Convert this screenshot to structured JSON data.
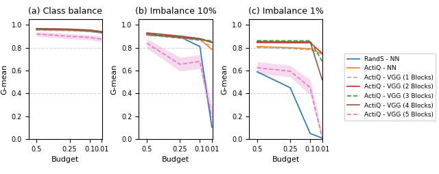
{
  "chart_data": [
    {
      "type": "line",
      "title": "(a) Class balance",
      "xlabel": "Budget",
      "ylabel": "G-mean",
      "x": [
        0.5,
        0.25,
        0.1,
        0.01
      ],
      "xlim": [
        0.56,
        0.006
      ],
      "xticks": [
        0.5,
        0.25,
        0.1,
        0.01
      ],
      "ylim": [
        0.0,
        1.05
      ],
      "yticks": [
        {
          "value": 0,
          "label": "0.0"
        },
        0.2,
        0.4,
        0.6,
        0.8,
        {
          "value": 1,
          "label": "1.0"
        }
      ],
      "hlines": [
        0.4,
        0.8
      ],
      "legend": "center right",
      "series": [
        {
          "name": "RandS - NN",
          "color": "#1f77b4",
          "line_style": "solid",
          "values": [
            0.96,
            0.955,
            0.945,
            0.93
          ]
        },
        {
          "name": "ActiQ - NN",
          "color": "#ff7f0e",
          "line_style": "solid",
          "values": [
            0.958,
            0.952,
            0.948,
            0.935
          ]
        },
        {
          "name": "ActiQ - VGG (1 Blocks)",
          "color": "#aaaaaa",
          "line_style": "dashed",
          "values": [
            0.953,
            0.948,
            0.94,
            0.928
          ]
        },
        {
          "name": "ActiQ - VGG (2 Blocks)",
          "color": "#d62728",
          "line_style": "solid",
          "values": [
            0.968,
            0.963,
            0.955,
            0.942
          ]
        },
        {
          "name": "ActiQ - VGG (3 Blocks)",
          "color": "#2ca02c",
          "line_style": "dashed",
          "values": [
            0.965,
            0.96,
            0.952,
            0.94
          ]
        },
        {
          "name": "ActiQ - VGG (4 Blocks)",
          "color": "#8c564b",
          "line_style": "solid",
          "values": [
            0.962,
            0.957,
            0.948,
            0.935
          ]
        },
        {
          "name": "ActiQ - VGG (5 Blocks)",
          "color": "#e377c2",
          "line_style": "dashed",
          "values": [
            0.92,
            0.9,
            0.89,
            0.875
          ],
          "band_upper": [
            0.94,
            0.922,
            0.912,
            0.9
          ],
          "band_lower": [
            0.9,
            0.878,
            0.868,
            0.852
          ]
        }
      ]
    },
    {
      "type": "line",
      "title": "(b) Imbalance 10%",
      "xlabel": "Budget",
      "ylabel": "G-mean",
      "x": [
        0.5,
        0.25,
        0.1,
        0.01
      ],
      "xlim": [
        0.56,
        0.006
      ],
      "xticks": [
        0.5,
        0.25,
        0.1,
        0.01
      ],
      "ylim": [
        0.0,
        1.05
      ],
      "yticks": [
        {
          "value": 0,
          "label": "0.0"
        },
        0.2,
        0.4,
        0.6,
        0.8,
        {
          "value": 1,
          "label": "1.0"
        }
      ],
      "hlines": [
        0.4,
        0.8
      ],
      "legend": "center right",
      "series": [
        {
          "name": "RandS - NN",
          "color": "#1f77b4",
          "line_style": "solid",
          "values": [
            0.91,
            0.895,
            0.81,
            0.105
          ]
        },
        {
          "name": "ActiQ - NN",
          "color": "#ff7f0e",
          "line_style": "solid",
          "values": [
            0.915,
            0.89,
            0.875,
            0.785
          ]
        },
        {
          "name": "ActiQ - VGG (1 Blocks)",
          "color": "#aaaaaa",
          "line_style": "dashed",
          "values": [
            0.91,
            0.882,
            0.862,
            0.812
          ]
        },
        {
          "name": "ActiQ - VGG (2 Blocks)",
          "color": "#d62728",
          "line_style": "solid",
          "values": [
            0.93,
            0.902,
            0.88,
            0.845
          ]
        },
        {
          "name": "ActiQ - VGG (3 Blocks)",
          "color": "#2ca02c",
          "line_style": "dashed",
          "values": [
            0.925,
            0.895,
            0.878,
            0.858
          ]
        },
        {
          "name": "ActiQ - VGG (4 Blocks)",
          "color": "#8c564b",
          "line_style": "solid",
          "values": [
            0.918,
            0.888,
            0.872,
            0.85
          ]
        },
        {
          "name": "ActiQ - VGG (5 Blocks)",
          "color": "#e377c2",
          "line_style": "dashed",
          "values": [
            0.84,
            0.655,
            0.68,
            0.195
          ],
          "band_upper": [
            0.88,
            0.715,
            0.74,
            0.29
          ],
          "band_lower": [
            0.795,
            0.595,
            0.618,
            0.1
          ]
        }
      ]
    },
    {
      "type": "line",
      "title": "(c) Imbalance 1%",
      "xlabel": "Budget",
      "ylabel": "G-mean",
      "x": [
        0.5,
        0.25,
        0.1,
        0.01
      ],
      "xlim": [
        0.56,
        0.006
      ],
      "xticks": [
        0.5,
        0.25,
        0.1,
        0.01
      ],
      "ylim": [
        0.0,
        1.05
      ],
      "yticks": [
        {
          "value": 0,
          "label": "0.0"
        },
        0.2,
        0.4,
        0.6,
        0.8,
        {
          "value": 1,
          "label": "1.0"
        }
      ],
      "hlines": [
        0.4,
        0.8
      ],
      "legend": "center right",
      "series": [
        {
          "name": "RandS - NN",
          "color": "#1f77b4",
          "line_style": "solid",
          "values": [
            0.59,
            0.45,
            0.05,
            0.01
          ]
        },
        {
          "name": "ActiQ - NN",
          "color": "#ff7f0e",
          "line_style": "solid",
          "values": [
            0.81,
            0.8,
            0.792,
            0.745
          ]
        },
        {
          "name": "ActiQ - VGG (1 Blocks)",
          "color": "#aaaaaa",
          "line_style": "dashed",
          "values": [
            0.8,
            0.792,
            0.782,
            0.742
          ]
        },
        {
          "name": "ActiQ - VGG (2 Blocks)",
          "color": "#d62728",
          "line_style": "solid",
          "values": [
            0.845,
            0.843,
            0.843,
            0.752
          ]
        },
        {
          "name": "ActiQ - VGG (3 Blocks)",
          "color": "#2ca02c",
          "line_style": "dashed",
          "values": [
            0.862,
            0.861,
            0.861,
            0.682
          ]
        },
        {
          "name": "ActiQ - VGG (4 Blocks)",
          "color": "#8c564b",
          "line_style": "solid",
          "values": [
            0.855,
            0.852,
            0.852,
            0.52
          ]
        },
        {
          "name": "ActiQ - VGG (5 Blocks)",
          "color": "#e377c2",
          "line_style": "dashed",
          "values": [
            0.625,
            0.595,
            0.452,
            0.012
          ],
          "band_upper": [
            0.678,
            0.645,
            0.52,
            0.062
          ],
          "band_lower": [
            0.572,
            0.545,
            0.385,
            0.0
          ]
        }
      ]
    }
  ]
}
